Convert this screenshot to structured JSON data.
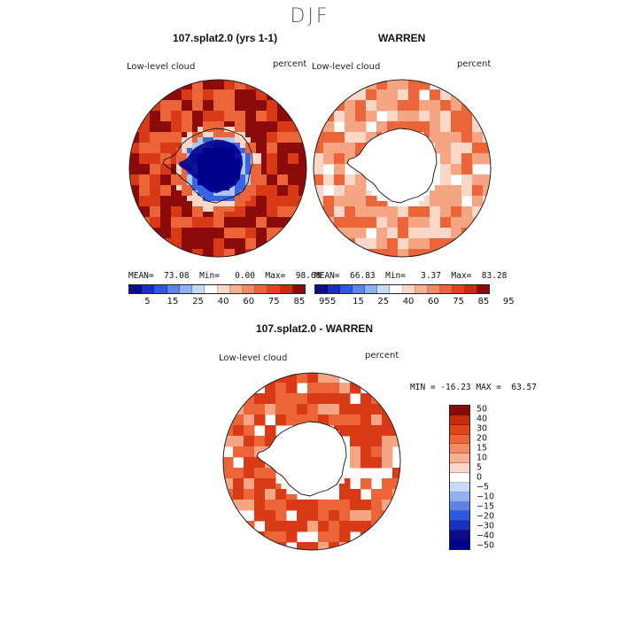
{
  "season": "DJF",
  "panels": [
    {
      "title": "107.splat2.0 (yrs 1-1)",
      "variable": "Low-level cloud",
      "units": "percent",
      "stats": "MEAN=  73.08  Min=   0.00  Max=  98.68"
    },
    {
      "title": "WARREN",
      "variable": "Low-level cloud",
      "units": "percent",
      "stats": "MEAN=  66.83  Min=   3.37  Max=  83.28"
    }
  ],
  "diff_panel": {
    "title": "107.splat2.0 - WARREN",
    "variable": "Low-level cloud",
    "units": "percent",
    "minmax": "MIN = -16.23 MAX =  63.57"
  },
  "abs_colorbar": {
    "colors": [
      "#0b0b8c",
      "#1a2fbf",
      "#2d58e0",
      "#5a84ea",
      "#8fb1f2",
      "#c5dbf8",
      "#ffffff",
      "#fbd7c7",
      "#f7b092",
      "#f28a64",
      "#ec6538",
      "#e3431a",
      "#c52b0c",
      "#8b0a0a"
    ],
    "labels": [
      "5",
      "15",
      "25",
      "40",
      "60",
      "75",
      "85",
      "95"
    ]
  },
  "diff_colorbar": {
    "colors": [
      "#8b0a0a",
      "#c52b0c",
      "#e3431a",
      "#ec6538",
      "#f28a64",
      "#f7b092",
      "#fbd7c7",
      "#ffffff",
      "#c5dbf8",
      "#8fb1f2",
      "#5a84ea",
      "#2d58e0",
      "#1a2fbf",
      "#0b0b8c",
      "#00008b"
    ],
    "labels": [
      "50",
      "40",
      "30",
      "20",
      "15",
      "10",
      "5",
      "0",
      "−5",
      "−10",
      "−15",
      "−20",
      "−30",
      "−40",
      "−50"
    ]
  },
  "colors": {
    "deep_red": "#8b0a0a",
    "red": "#d93a16",
    "orange": "#ec6538",
    "light_salmon": "#f5a584",
    "pale": "#fbd7c7",
    "blue_dark": "#00008b",
    "blue_mid": "#3a64e6",
    "blue_light": "#a9c6f5"
  }
}
